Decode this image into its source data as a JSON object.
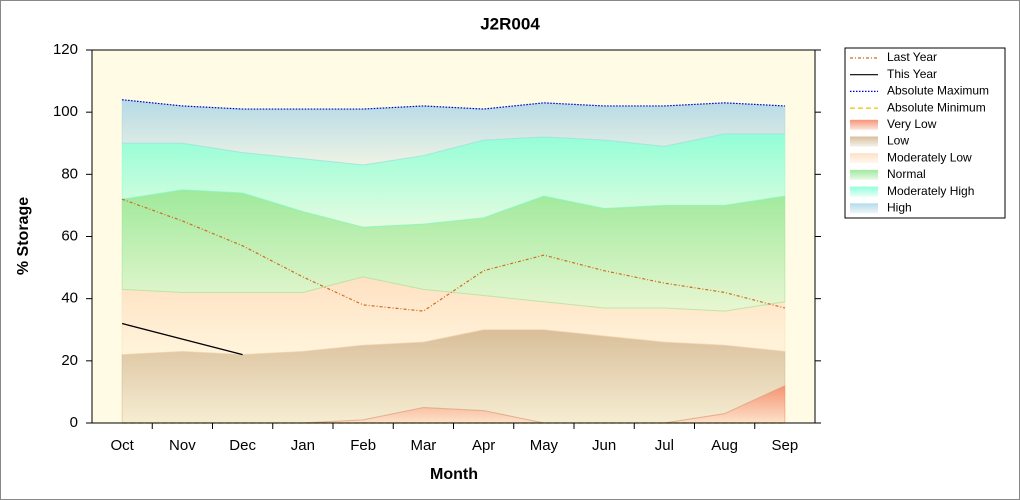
{
  "chart_data": {
    "type": "area",
    "title": "J2R004",
    "xlabel": "Month",
    "ylabel": "% Storage",
    "categories": [
      "Oct",
      "Nov",
      "Dec",
      "Jan",
      "Feb",
      "Mar",
      "Apr",
      "May",
      "Jun",
      "Jul",
      "Aug",
      "Sep"
    ],
    "ylim": [
      0,
      120
    ],
    "yticks": [
      0,
      20,
      40,
      60,
      80,
      100,
      120
    ],
    "series": [
      {
        "name": "Last Year",
        "kind": "line",
        "style": "dashdot",
        "color": "#d2691e",
        "values": [
          72,
          65,
          57,
          47,
          38,
          36,
          49,
          54,
          49,
          45,
          42,
          37
        ]
      },
      {
        "name": "This Year",
        "kind": "line",
        "style": "solid",
        "color": "#000000",
        "values": [
          32,
          27,
          22,
          null,
          null,
          null,
          null,
          null,
          null,
          null,
          null,
          null
        ]
      },
      {
        "name": "Absolute Maximum",
        "kind": "line",
        "style": "dotted",
        "color": "#0000cd",
        "values": [
          104,
          102,
          101,
          101,
          101,
          102,
          101,
          103,
          102,
          102,
          103,
          102
        ]
      },
      {
        "name": "Absolute Minimum",
        "kind": "line",
        "style": "dashed",
        "color": "#e6c800",
        "values": [
          0,
          0,
          0,
          0,
          0,
          0,
          0,
          0,
          0,
          0,
          0,
          0
        ]
      },
      {
        "name": "Very Low",
        "kind": "band",
        "color": "#f4805e",
        "values": [
          0,
          0,
          0,
          0,
          1,
          5,
          4,
          0,
          0,
          0,
          3,
          12
        ]
      },
      {
        "name": "Low",
        "kind": "band",
        "color": "#d2b48c",
        "values": [
          22,
          23,
          22,
          23,
          24,
          21,
          26,
          30,
          28,
          26,
          22,
          11
        ]
      },
      {
        "name": "Moderately Low",
        "kind": "band",
        "color": "#ffdcbc",
        "values": [
          21,
          19,
          20,
          19,
          22,
          17,
          11,
          9,
          9,
          11,
          11,
          16
        ]
      },
      {
        "name": "Normal",
        "kind": "band",
        "color": "#8ee68e",
        "values": [
          29,
          33,
          32,
          26,
          16,
          21,
          25,
          34,
          32,
          33,
          34,
          34
        ]
      },
      {
        "name": "Moderately High",
        "kind": "band",
        "color": "#7fffd4",
        "values": [
          18,
          15,
          13,
          17,
          20,
          22,
          25,
          19,
          22,
          19,
          23,
          20
        ]
      },
      {
        "name": "High",
        "kind": "band",
        "color": "#a8d4e6",
        "values": [
          14,
          12,
          14,
          16,
          18,
          16,
          10,
          11,
          11,
          13,
          10,
          9
        ]
      }
    ]
  }
}
